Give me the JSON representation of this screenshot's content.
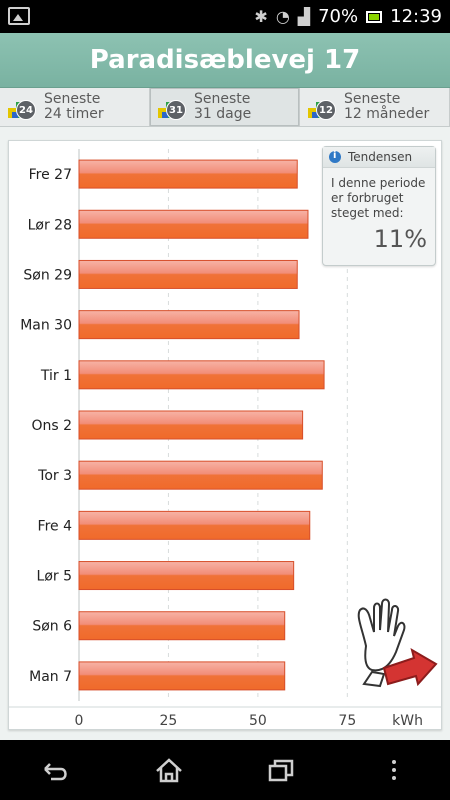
{
  "status_bar": {
    "left_icon": "image-icon",
    "icons": [
      "bluetooth-icon",
      "wifi-icon",
      "signal-icon"
    ],
    "battery_percent": "70%",
    "time": "12:39"
  },
  "header": {
    "title": "Paradisæblevej 17"
  },
  "tabs": [
    {
      "badge": "24",
      "line1": "Seneste",
      "line2": "24 timer",
      "active": false
    },
    {
      "badge": "31",
      "line1": "Seneste",
      "line2": "31 dage",
      "active": true
    },
    {
      "badge": "12",
      "line1": "Seneste",
      "line2": "12 måneder",
      "active": false
    }
  ],
  "trend": {
    "title": "Tendensen",
    "text": "I denne periode er forbruget steget med:",
    "percent": "11%"
  },
  "chart_data": {
    "type": "bar",
    "orientation": "horizontal",
    "categories": [
      "Fre 27",
      "Lør 28",
      "Søn 29",
      "Man 30",
      "Tir 1",
      "Ons 2",
      "Tor 3",
      "Fre 4",
      "Lør 5",
      "Søn 6",
      "Man 7"
    ],
    "values": [
      61,
      64,
      61,
      61.5,
      68.5,
      62.5,
      68,
      64.5,
      60,
      57.5,
      57.5
    ],
    "xlim": [
      0,
      90
    ],
    "xticks": [
      0,
      25,
      50,
      75
    ],
    "xlabel": "kWh",
    "grid": "vertical"
  },
  "colors": {
    "bar_top": "#f7b3a6",
    "bar_bottom": "#f06a2a",
    "bar_stroke": "#d74e2a",
    "title_bg": "#82b9a8"
  },
  "nav": [
    "back-icon",
    "home-icon",
    "recent-apps-icon",
    "menu-icon"
  ]
}
